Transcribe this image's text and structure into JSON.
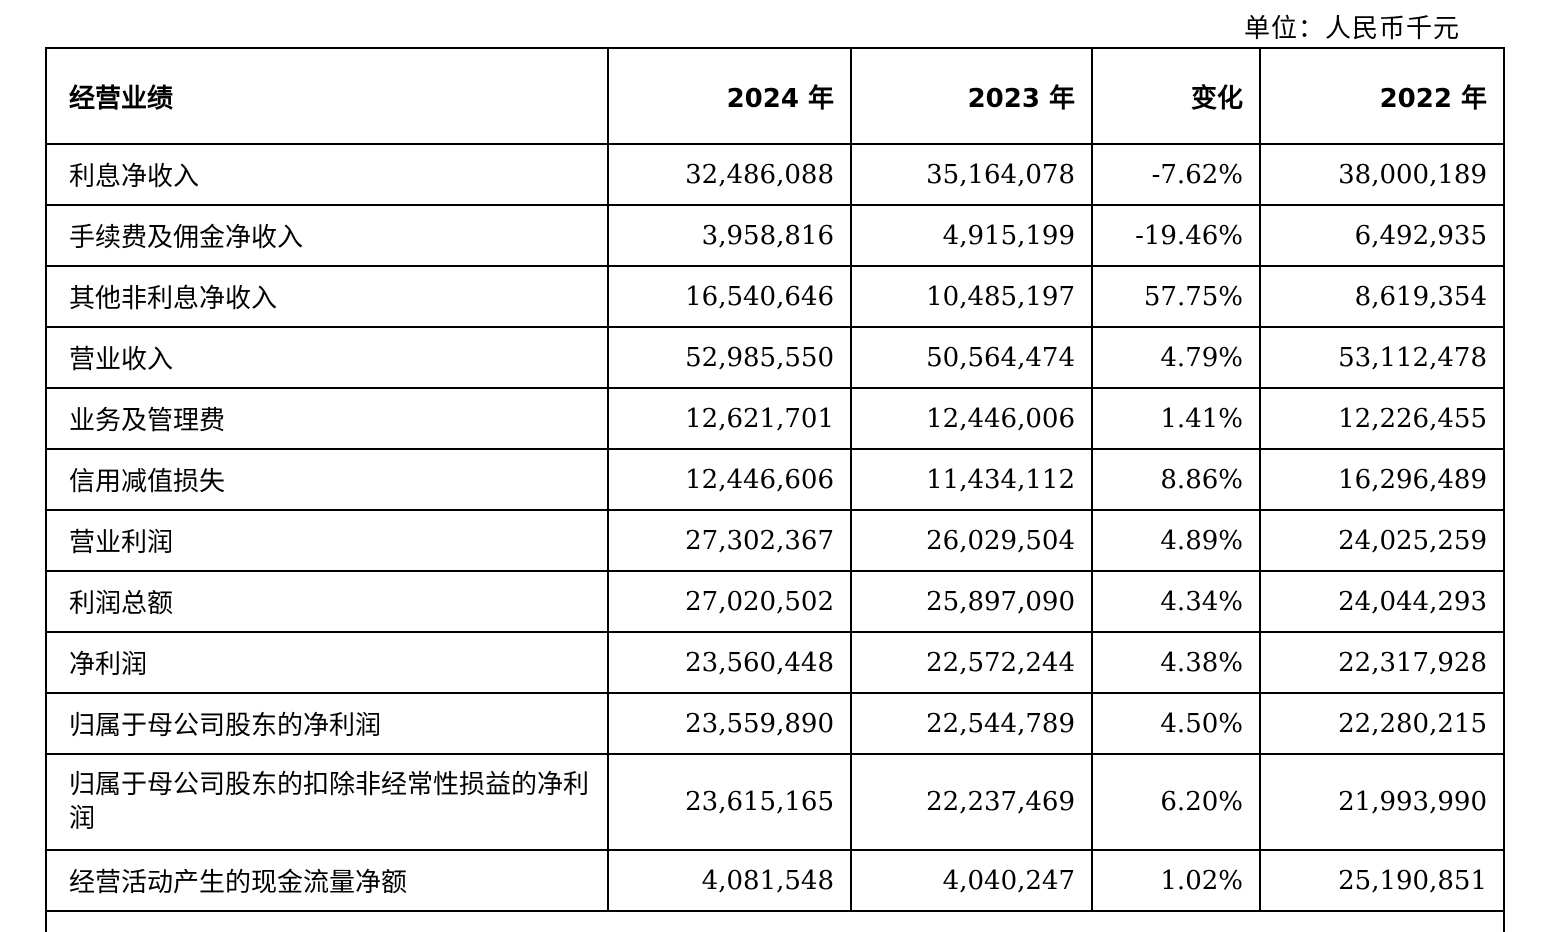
{
  "unit_note": "单位：人民币千元",
  "headers": [
    "经营业绩",
    "2024 年",
    "2023 年",
    "变化",
    "2022 年"
  ],
  "rows": [
    {
      "label": "利息净收入",
      "y2024": "32,486,088",
      "y2023": "35,164,078",
      "change": "-7.62%",
      "y2022": "38,000,189"
    },
    {
      "label": "手续费及佣金净收入",
      "y2024": "3,958,816",
      "y2023": "4,915,199",
      "change": "-19.46%",
      "y2022": "6,492,935"
    },
    {
      "label": "其他非利息净收入",
      "y2024": "16,540,646",
      "y2023": "10,485,197",
      "change": "57.75%",
      "y2022": "8,619,354"
    },
    {
      "label": "营业收入",
      "y2024": "52,985,550",
      "y2023": "50,564,474",
      "change": "4.79%",
      "y2022": "53,112,478"
    },
    {
      "label": "业务及管理费",
      "y2024": "12,621,701",
      "y2023": "12,446,006",
      "change": "1.41%",
      "y2022": "12,226,455"
    },
    {
      "label": "信用减值损失",
      "y2024": "12,446,606",
      "y2023": "11,434,112",
      "change": "8.86%",
      "y2022": "16,296,489"
    },
    {
      "label": "营业利润",
      "y2024": "27,302,367",
      "y2023": "26,029,504",
      "change": "4.89%",
      "y2022": "24,025,259"
    },
    {
      "label": "利润总额",
      "y2024": "27,020,502",
      "y2023": "25,897,090",
      "change": "4.34%",
      "y2022": "24,044,293"
    },
    {
      "label": "净利润",
      "y2024": "23,560,448",
      "y2023": "22,572,244",
      "change": "4.38%",
      "y2022": "22,317,928"
    },
    {
      "label": "归属于母公司股东的净利润",
      "y2024": "23,559,890",
      "y2023": "22,544,789",
      "change": "4.50%",
      "y2022": "22,280,215"
    },
    {
      "label": "归属于母公司股东的扣除非经常性损益的净利润",
      "y2024": "23,615,165",
      "y2023": "22,237,469",
      "change": "6.20%",
      "y2022": "21,993,990"
    },
    {
      "label": "经营活动产生的现金流量净额",
      "y2024": "4,081,548",
      "y2023": "4,040,247",
      "change": "1.02%",
      "y2022": "25,190,851"
    }
  ]
}
